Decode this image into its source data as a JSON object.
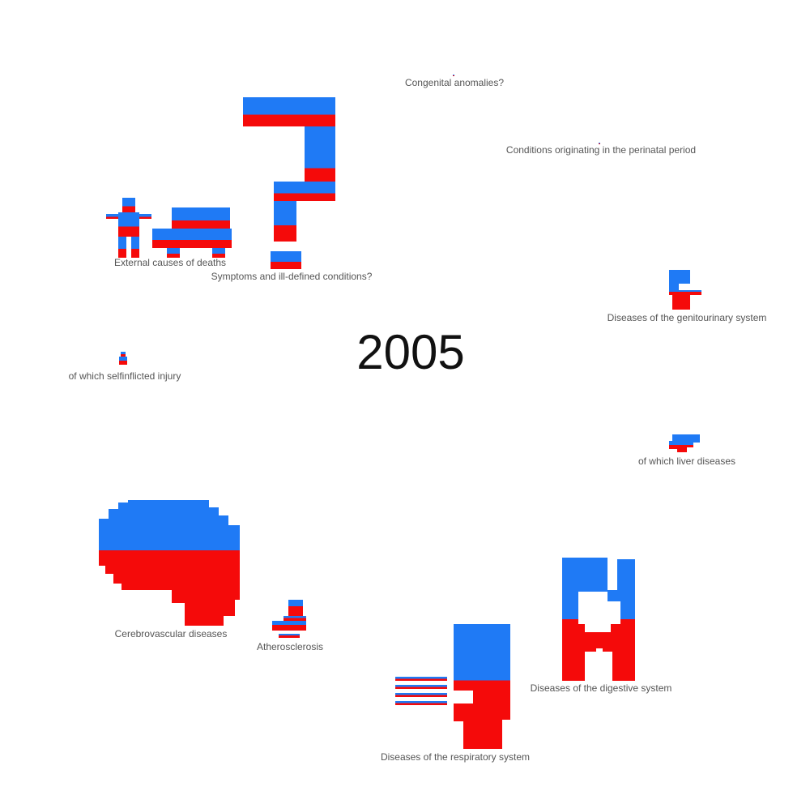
{
  "colors": {
    "top": "#1f7af5",
    "bottom": "#f50a0a",
    "label": "#555555",
    "year": "#111111"
  },
  "chart_data": {
    "type": "pictogram",
    "year": "2005",
    "categories": [
      {
        "id": "congenital",
        "label": "Congenital anomalies?",
        "icon": "dot-icon",
        "top_fraction": 0.5
      },
      {
        "id": "perinatal",
        "label": "Conditions originating in the perinatal period",
        "icon": "dot-icon",
        "top_fraction": 0.5
      },
      {
        "id": "external",
        "label": "External causes of deaths",
        "icon": "person-and-car-icon",
        "top_fraction": 0.58
      },
      {
        "id": "symptoms",
        "label": "Symptoms and ill-defined conditions?",
        "icon": "question-mark-icon",
        "top_fraction": 0.6
      },
      {
        "id": "genitourinary",
        "label": "Diseases of the genitourinary system",
        "icon": "kidney-icon",
        "top_fraction": 0.55
      },
      {
        "id": "selfinflicted",
        "label": "of which selfinflicted injury",
        "icon": "figure-icon",
        "top_fraction": 0.5
      },
      {
        "id": "liver",
        "label": "of which liver diseases",
        "icon": "liver-icon",
        "top_fraction": 0.6
      },
      {
        "id": "cerebrovascular",
        "label": "Cerebrovascular diseases",
        "icon": "brain-icon",
        "top_fraction": 0.4
      },
      {
        "id": "atherosclerosis",
        "label": "Atherosclerosis",
        "icon": "vessel-icon",
        "top_fraction": 0.4
      },
      {
        "id": "respiratory",
        "label": "Diseases of the respiratory system",
        "icon": "lungs-icon",
        "top_fraction": 0.45
      },
      {
        "id": "digestive",
        "label": "Diseases of the digestive system",
        "icon": "stomach-icon",
        "top_fraction": 0.5
      }
    ]
  }
}
